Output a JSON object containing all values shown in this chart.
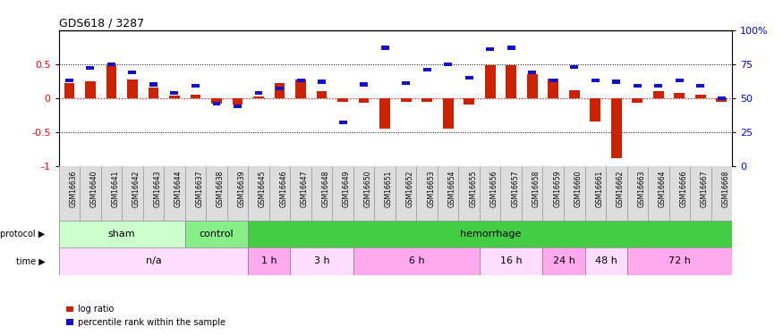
{
  "title": "GDS618 / 3287",
  "samples": [
    "GSM16636",
    "GSM16640",
    "GSM16641",
    "GSM16642",
    "GSM16643",
    "GSM16644",
    "GSM16637",
    "GSM16638",
    "GSM16639",
    "GSM16645",
    "GSM16646",
    "GSM16647",
    "GSM16648",
    "GSM16649",
    "GSM16650",
    "GSM16651",
    "GSM16652",
    "GSM16653",
    "GSM16654",
    "GSM16655",
    "GSM16656",
    "GSM16657",
    "GSM16658",
    "GSM16659",
    "GSM16660",
    "GSM16661",
    "GSM16662",
    "GSM16663",
    "GSM16664",
    "GSM16666",
    "GSM16667",
    "GSM16668"
  ],
  "log_ratio": [
    0.22,
    0.25,
    0.49,
    0.27,
    0.15,
    0.04,
    0.05,
    -0.08,
    -0.1,
    0.02,
    0.22,
    0.27,
    0.1,
    -0.05,
    -0.07,
    -0.45,
    -0.05,
    -0.05,
    -0.45,
    -0.1,
    0.48,
    0.48,
    0.35,
    0.28,
    0.12,
    -0.35,
    -0.88,
    -0.07,
    0.1,
    0.07,
    0.05,
    -0.05
  ],
  "pct_rank_pct": [
    63,
    72,
    75,
    69,
    60,
    54,
    59,
    46,
    44,
    54,
    57,
    63,
    62,
    32,
    60,
    87,
    61,
    71,
    75,
    65,
    86,
    87,
    69,
    63,
    73,
    63,
    62,
    59,
    59,
    63,
    59,
    50
  ],
  "protocol_groups": [
    {
      "label": "sham",
      "start": 0,
      "end": 6,
      "color": "#ccffcc"
    },
    {
      "label": "control",
      "start": 6,
      "end": 9,
      "color": "#88ee88"
    },
    {
      "label": "hemorrhage",
      "start": 9,
      "end": 32,
      "color": "#44cc44"
    }
  ],
  "time_groups": [
    {
      "label": "n/a",
      "start": 0,
      "end": 9,
      "color": "#ffddff"
    },
    {
      "label": "1 h",
      "start": 9,
      "end": 11,
      "color": "#ffaaee"
    },
    {
      "label": "3 h",
      "start": 11,
      "end": 14,
      "color": "#ffddff"
    },
    {
      "label": "6 h",
      "start": 14,
      "end": 20,
      "color": "#ffaaee"
    },
    {
      "label": "16 h",
      "start": 20,
      "end": 23,
      "color": "#ffddff"
    },
    {
      "label": "24 h",
      "start": 23,
      "end": 25,
      "color": "#ffaaee"
    },
    {
      "label": "48 h",
      "start": 25,
      "end": 27,
      "color": "#ffddff"
    },
    {
      "label": "72 h",
      "start": 27,
      "end": 32,
      "color": "#ffaaee"
    }
  ],
  "bar_color_red": "#cc2200",
  "bar_color_blue": "#1111cc",
  "ylim": [
    -1,
    1
  ],
  "yticks_left": [
    -1,
    -0.5,
    0,
    0.5
  ],
  "yticks_right_pct": [
    0,
    25,
    50,
    75,
    100
  ],
  "label_red": "log ratio",
  "label_blue": "percentile rank within the sample",
  "sample_bg": "#dddddd"
}
